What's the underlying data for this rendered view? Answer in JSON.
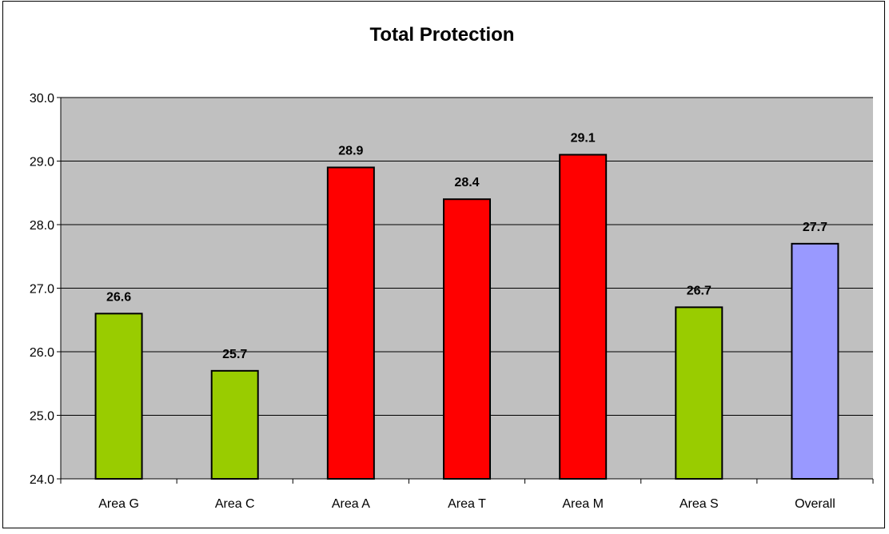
{
  "chart_data": {
    "type": "bar",
    "title": "Total Protection",
    "categories": [
      "Area G",
      "Area C",
      "Area A",
      "Area T",
      "Area M",
      "Area S",
      "Overall"
    ],
    "values": [
      26.6,
      25.7,
      28.9,
      28.4,
      29.1,
      26.7,
      27.7
    ],
    "value_labels": [
      "26.6",
      "25.7",
      "28.9",
      "28.4",
      "29.1",
      "26.7",
      "27.7"
    ],
    "bar_colors": [
      "#99cc00",
      "#99cc00",
      "#ff0000",
      "#ff0000",
      "#ff0000",
      "#99cc00",
      "#9999ff"
    ],
    "ylim": [
      24.0,
      30.0
    ],
    "yticks": [
      "24.0",
      "25.0",
      "26.0",
      "27.0",
      "28.0",
      "29.0",
      "30.0"
    ],
    "ytick_values": [
      24.0,
      25.0,
      26.0,
      27.0,
      28.0,
      29.0,
      30.0
    ],
    "grid": true,
    "plot_background": "#c0c0c0",
    "xlabel": "",
    "ylabel": ""
  }
}
